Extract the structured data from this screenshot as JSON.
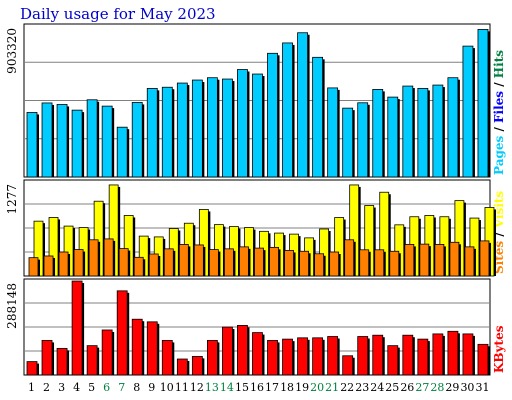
{
  "chart_data": {
    "type": "bar",
    "title": "Daily usage for May 2023",
    "categories": [
      "1",
      "2",
      "3",
      "4",
      "5",
      "6",
      "7",
      "8",
      "9",
      "10",
      "11",
      "12",
      "13",
      "14",
      "15",
      "16",
      "17",
      "18",
      "19",
      "20",
      "21",
      "22",
      "23",
      "24",
      "25",
      "26",
      "27",
      "28",
      "29",
      "30",
      "31"
    ],
    "weekend_days": [
      "6",
      "7",
      "13",
      "14",
      "20",
      "21",
      "27",
      "28"
    ],
    "panels": [
      {
        "id": "top",
        "max_label": "903320",
        "ylim": [
          0,
          903320
        ],
        "side_labels": [
          {
            "text": "Pages",
            "color": "#00ccff"
          },
          {
            "text": " / ",
            "color": "#000000"
          },
          {
            "text": "Files",
            "color": "#0000ff"
          },
          {
            "text": " / ",
            "color": "#000000"
          },
          {
            "text": "Hits",
            "color": "#008040"
          }
        ],
        "series": [
          {
            "name": "Hits",
            "color": "#008040",
            "values": [
              0,
              0,
              0,
              0,
              0,
              0,
              0,
              0,
              0,
              0,
              0,
              0,
              0,
              0,
              0,
              0,
              0,
              0,
              0,
              0,
              0,
              0,
              0,
              0,
              0,
              0,
              0,
              0,
              0,
              0,
              0
            ]
          },
          {
            "name": "Files",
            "color": "#0000ff",
            "values": [
              0,
              0,
              0,
              0,
              0,
              0,
              0,
              0,
              0,
              0,
              0,
              0,
              0,
              0,
              0,
              0,
              0,
              0,
              0,
              0,
              0,
              0,
              0,
              0,
              0,
              0,
              0,
              0,
              0,
              0,
              0
            ]
          },
          {
            "name": "Pages",
            "color": "#00ccff",
            "values": [
              386000,
              443000,
              434000,
              400000,
              462000,
              424000,
              298000,
              446000,
              530000,
              537000,
              562000,
              580000,
              594000,
              586000,
              643000,
              616000,
              740000,
              802000,
              863000,
              716000,
              533000,
              412000,
              444000,
              524000,
              478000,
              544000,
              530000,
              550000,
              594000,
              783000,
              883000
            ]
          }
        ]
      },
      {
        "id": "middle",
        "max_label": "1277",
        "ylim": [
          0,
          1277
        ],
        "side_labels": [
          {
            "text": "Sites",
            "color": "#ff8000"
          },
          {
            "text": " / ",
            "color": "#000000"
          },
          {
            "text": "Visits",
            "color": "#ffff00"
          }
        ],
        "series": [
          {
            "name": "Visits",
            "color": "#ffff00",
            "values": [
              745,
              795,
              678,
              658,
              1016,
              1237,
              822,
              542,
              531,
              645,
              717,
              904,
              698,
              671,
              658,
              607,
              583,
              569,
              518,
              639,
              794,
              1237,
              957,
              1138,
              695,
              805,
              822,
              805,
              1024,
              787,
              931
            ]
          },
          {
            "name": "Sites",
            "color": "#ff8000",
            "values": [
              249,
              272,
              326,
              359,
              492,
              504,
              372,
              254,
              299,
              369,
              429,
              422,
              359,
              369,
              396,
              379,
              389,
              347,
              336,
              302,
              326,
              492,
              356,
              356,
              336,
              429,
              433,
              429,
              458,
              396,
              477
            ]
          }
        ]
      },
      {
        "id": "bottom",
        "max_label": "288148",
        "ylim": [
          0,
          288148
        ],
        "side_labels": [
          {
            "text": "KBytes",
            "color": "#ff0000"
          }
        ],
        "series": [
          {
            "name": "KBytes",
            "color": "#ff0000",
            "values": [
              41100,
              106000,
              81600,
              288000,
              90000,
              138000,
              258000,
              171000,
              163000,
              106000,
              49000,
              57000,
              106000,
              147000,
              152000,
              130000,
              106000,
              110000,
              114000,
              114000,
              118000,
              59000,
              118000,
              122000,
              90000,
              122000,
              110000,
              126000,
              134000,
              126000,
              94000
            ]
          }
        ]
      }
    ]
  }
}
